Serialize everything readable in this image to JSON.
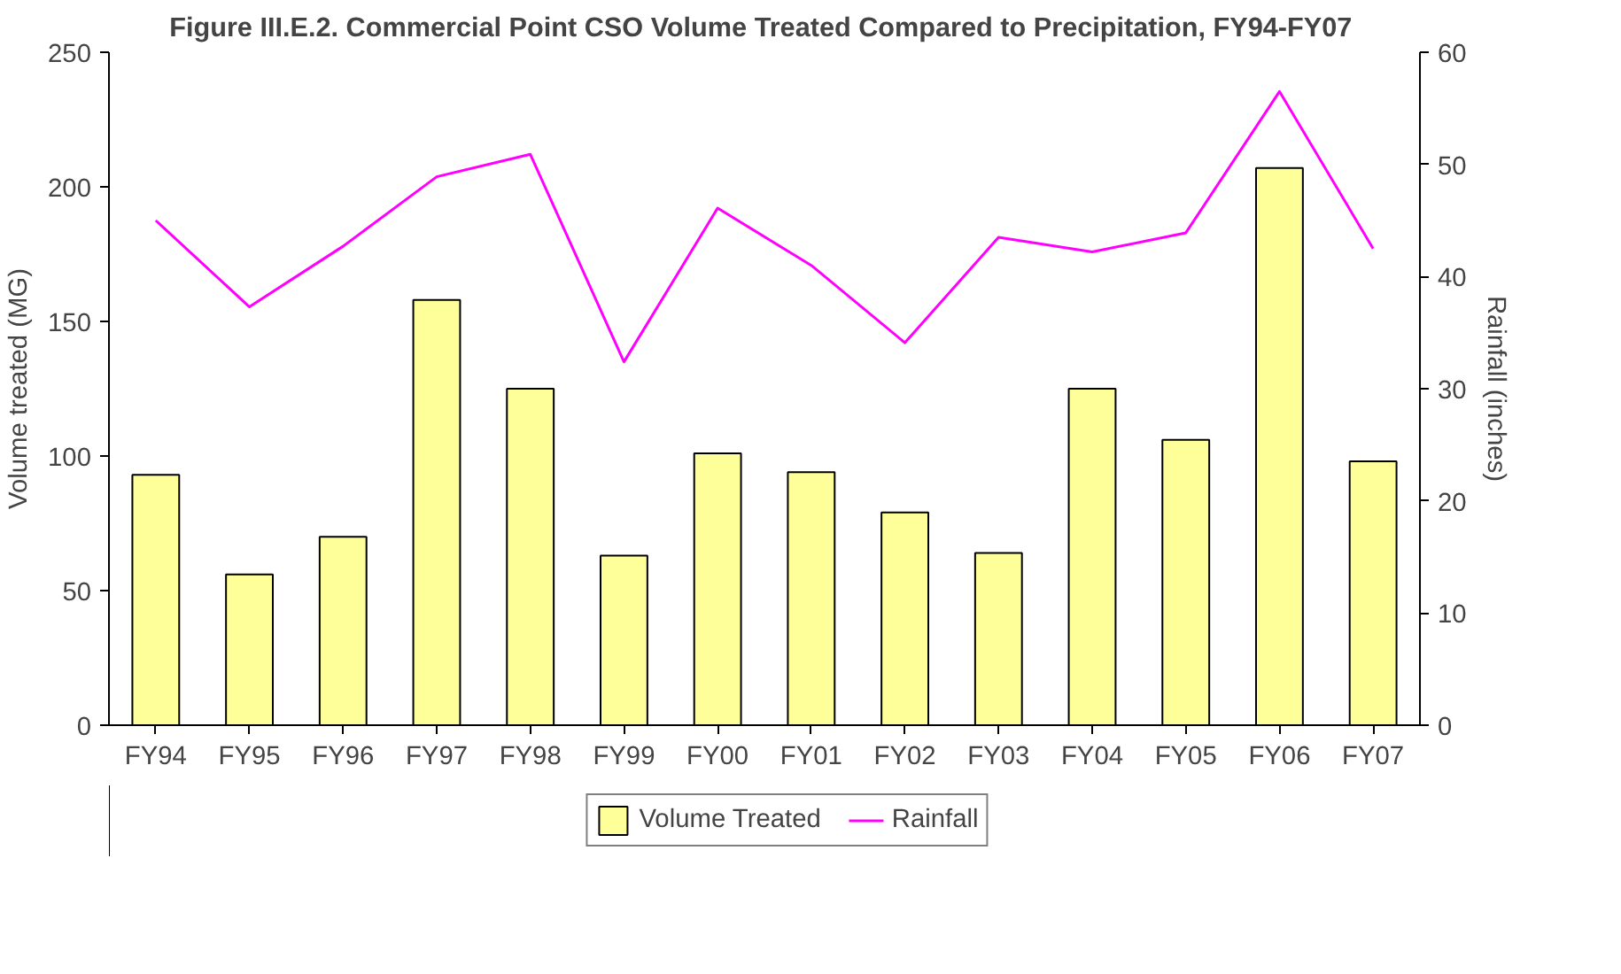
{
  "chart_data": {
    "type": "bar",
    "title": "Figure III.E.2.  Commercial Point CSO Volume Treated Compared to Precipitation, FY94-FY07",
    "categories": [
      "FY94",
      "FY95",
      "FY96",
      "FY97",
      "FY98",
      "FY99",
      "FY00",
      "FY01",
      "FY02",
      "FY03",
      "FY04",
      "FY05",
      "FY06",
      "FY07"
    ],
    "series": [
      {
        "name": "Volume Treated",
        "color": "#ffff99",
        "values": [
          93,
          56,
          70,
          158,
          125,
          63,
          101,
          94,
          79,
          64,
          125,
          106,
          207,
          98
        ]
      },
      {
        "name": "Rainfall",
        "type": "line",
        "axis": "y2",
        "color": "#ff00ff",
        "values": [
          45.0,
          37.3,
          42.7,
          48.9,
          50.9,
          32.4,
          46.1,
          41.0,
          34.1,
          43.5,
          42.2,
          43.9,
          56.5,
          42.5
        ]
      }
    ],
    "ylabel": "Volume treated (MG)",
    "y2label": "Rainfall (inches)",
    "ylim": [
      0,
      250
    ],
    "yticks": [
      0,
      50,
      100,
      150,
      200,
      250
    ],
    "y2lim": [
      0,
      60
    ],
    "y2ticks": [
      0,
      10,
      20,
      30,
      40,
      50,
      60
    ],
    "grid": false,
    "legend": "bottom",
    "marker": "none",
    "line_style": "solid"
  }
}
